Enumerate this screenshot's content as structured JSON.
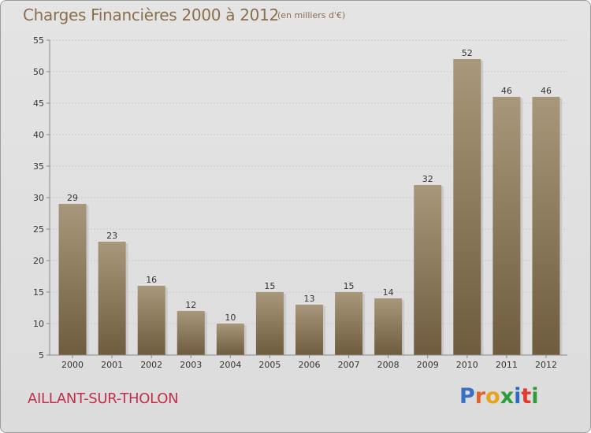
{
  "title": "Charges Financières 2000 à 2012",
  "subtitle": "(en milliers d'€)",
  "place": "AILLANT-SUR-THOLON",
  "brand": {
    "letters": [
      "P",
      "r",
      "o",
      "x",
      "i",
      "t",
      "i"
    ],
    "colors": [
      "#3a6fc4",
      "#e2622c",
      "#e8a21e",
      "#2f9c3a",
      "#2b6cc0",
      "#e03a2f",
      "#2f9c3a"
    ]
  },
  "colors": {
    "bar_top": "#a8977a",
    "bar_bottom": "#6f5c3e",
    "grid": "#c9c9c9",
    "axis": "#888888"
  },
  "chart_data": {
    "type": "bar",
    "categories": [
      "2000",
      "2001",
      "2002",
      "2003",
      "2004",
      "2005",
      "2006",
      "2007",
      "2008",
      "2009",
      "2010",
      "2011",
      "2012"
    ],
    "values": [
      29,
      23,
      16,
      12,
      10,
      15,
      13,
      15,
      14,
      32,
      52,
      46,
      46
    ],
    "yticks": [
      5,
      10,
      15,
      20,
      25,
      30,
      35,
      40,
      45,
      50,
      55
    ],
    "ylim": [
      5,
      55
    ],
    "grid": true
  }
}
